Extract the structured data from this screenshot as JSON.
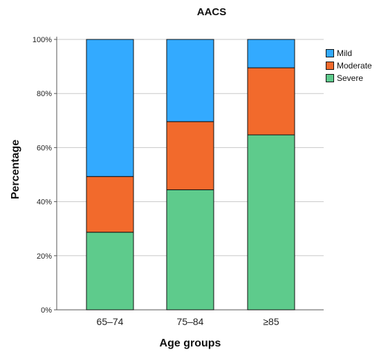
{
  "chart_data": {
    "type": "bar",
    "stacked": true,
    "title": "AACS",
    "xlabel": "Age groups",
    "ylabel": "Percentage",
    "categories": [
      "65–74",
      "75–84",
      "≥85"
    ],
    "series": [
      {
        "name": "Severe",
        "values": [
          28.7,
          44.4,
          64.7
        ],
        "color": "#5ecb8c"
      },
      {
        "name": "Moderate",
        "values": [
          20.6,
          25.2,
          24.8
        ],
        "color": "#f26a2c"
      },
      {
        "name": "Mild",
        "values": [
          50.7,
          30.4,
          10.5
        ],
        "color": "#33aaff"
      }
    ],
    "ylim": [
      0,
      100
    ],
    "y_ticks": [
      0,
      20,
      40,
      60,
      80,
      100
    ],
    "y_tick_labels": [
      "0%",
      "20%",
      "40%",
      "60%",
      "80%",
      "100%"
    ],
    "grid": true,
    "legend": {
      "placement": "top-right",
      "entries": [
        "Mild",
        "Moderate",
        "Severe"
      ]
    }
  }
}
